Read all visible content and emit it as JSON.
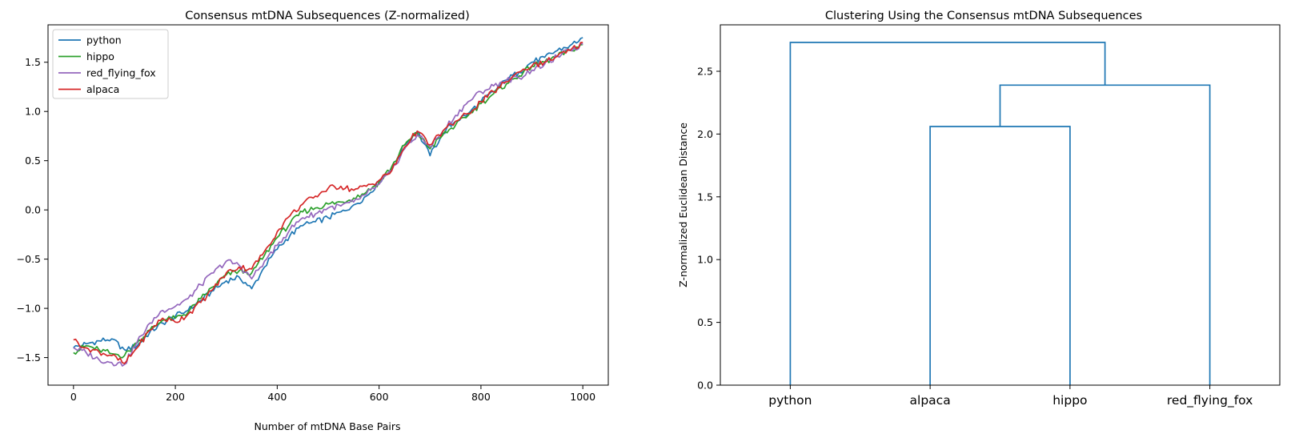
{
  "chart_data": [
    {
      "type": "line",
      "title": "Consensus mtDNA Subsequences (Z-normalized)",
      "xlabel": "Number of mtDNA Base Pairs",
      "ylabel": "",
      "xlim": [
        -50,
        1050
      ],
      "ylim": [
        -1.78,
        1.88
      ],
      "xticks": [
        0,
        200,
        400,
        600,
        800,
        1000
      ],
      "yticks": [
        -1.5,
        -1.0,
        -0.5,
        0.0,
        0.5,
        1.0,
        1.5
      ],
      "xtick_labels": [
        "0",
        "200",
        "400",
        "600",
        "800",
        "1000"
      ],
      "ytick_labels": [
        "−1.5",
        "−1.0",
        "−0.5",
        "0.0",
        "0.5",
        "1.0",
        "1.5"
      ],
      "legend_position": "top-left",
      "series": [
        {
          "name": "python",
          "color": "#1f77b4",
          "x": [
            0,
            25,
            50,
            75,
            100,
            125,
            150,
            175,
            200,
            225,
            250,
            275,
            300,
            325,
            350,
            375,
            400,
            425,
            450,
            475,
            500,
            525,
            550,
            575,
            600,
            625,
            650,
            675,
            700,
            725,
            750,
            775,
            800,
            825,
            850,
            875,
            900,
            925,
            950,
            975,
            1000
          ],
          "y": [
            -1.4,
            -1.36,
            -1.33,
            -1.31,
            -1.42,
            -1.38,
            -1.24,
            -1.15,
            -1.08,
            -1.02,
            -0.92,
            -0.82,
            -0.72,
            -0.68,
            -0.8,
            -0.58,
            -0.4,
            -0.26,
            -0.16,
            -0.12,
            -0.08,
            -0.02,
            0.05,
            0.14,
            0.28,
            0.42,
            0.66,
            0.8,
            0.55,
            0.78,
            0.9,
            0.98,
            1.1,
            1.2,
            1.32,
            1.4,
            1.5,
            1.55,
            1.62,
            1.67,
            1.75
          ]
        },
        {
          "name": "hippo",
          "color": "#2ca02c",
          "x": [
            0,
            25,
            50,
            75,
            100,
            125,
            150,
            175,
            200,
            225,
            250,
            275,
            300,
            325,
            350,
            375,
            400,
            425,
            450,
            475,
            500,
            525,
            550,
            575,
            600,
            625,
            650,
            675,
            700,
            725,
            750,
            775,
            800,
            825,
            850,
            875,
            900,
            925,
            950,
            975,
            1000
          ],
          "y": [
            -1.45,
            -1.38,
            -1.42,
            -1.46,
            -1.48,
            -1.35,
            -1.22,
            -1.12,
            -1.1,
            -1.04,
            -0.9,
            -0.78,
            -0.66,
            -0.62,
            -0.64,
            -0.46,
            -0.28,
            -0.14,
            -0.02,
            0.02,
            0.06,
            0.08,
            0.12,
            0.18,
            0.28,
            0.44,
            0.66,
            0.78,
            0.62,
            0.76,
            0.86,
            0.96,
            1.08,
            1.18,
            1.28,
            1.36,
            1.46,
            1.5,
            1.56,
            1.62,
            1.68
          ]
        },
        {
          "name": "red_flying_fox",
          "color": "#9467bd",
          "x": [
            0,
            25,
            50,
            75,
            100,
            125,
            150,
            175,
            200,
            225,
            250,
            275,
            300,
            325,
            350,
            375,
            400,
            425,
            450,
            475,
            500,
            525,
            550,
            575,
            600,
            625,
            650,
            675,
            700,
            725,
            750,
            775,
            800,
            825,
            850,
            875,
            900,
            925,
            950,
            975,
            1000
          ],
          "y": [
            -1.4,
            -1.45,
            -1.52,
            -1.55,
            -1.57,
            -1.34,
            -1.15,
            -1.02,
            -0.98,
            -0.9,
            -0.76,
            -0.64,
            -0.52,
            -0.56,
            -0.7,
            -0.52,
            -0.36,
            -0.2,
            -0.08,
            -0.04,
            0.02,
            0.04,
            0.08,
            0.16,
            0.26,
            0.4,
            0.62,
            0.76,
            0.64,
            0.8,
            0.96,
            1.1,
            1.2,
            1.26,
            1.32,
            1.34,
            1.42,
            1.48,
            1.56,
            1.62,
            1.68
          ]
        },
        {
          "name": "alpaca",
          "color": "#d62728",
          "x": [
            0,
            25,
            50,
            75,
            100,
            125,
            150,
            175,
            200,
            225,
            250,
            275,
            300,
            325,
            350,
            375,
            400,
            425,
            450,
            475,
            500,
            525,
            550,
            575,
            600,
            625,
            650,
            675,
            700,
            725,
            750,
            775,
            800,
            825,
            850,
            875,
            900,
            925,
            950,
            975,
            1000
          ],
          "y": [
            -1.32,
            -1.4,
            -1.44,
            -1.48,
            -1.56,
            -1.4,
            -1.22,
            -1.1,
            -1.14,
            -1.06,
            -0.94,
            -0.8,
            -0.64,
            -0.58,
            -0.6,
            -0.42,
            -0.22,
            -0.06,
            0.06,
            0.14,
            0.22,
            0.24,
            0.2,
            0.24,
            0.3,
            0.4,
            0.64,
            0.8,
            0.66,
            0.8,
            0.9,
            0.98,
            1.1,
            1.2,
            1.3,
            1.4,
            1.46,
            1.5,
            1.56,
            1.62,
            1.7
          ]
        }
      ]
    },
    {
      "type": "dendrogram",
      "title": "Clustering Using the Consensus mtDNA Subsequences",
      "xlabel": "",
      "ylabel": "Z-normalized Euclidean Distance",
      "ylim": [
        0,
        2.87
      ],
      "yticks": [
        0.0,
        0.5,
        1.0,
        1.5,
        2.0,
        2.5
      ],
      "ytick_labels": [
        "0.0",
        "0.5",
        "1.0",
        "1.5",
        "2.0",
        "2.5"
      ],
      "leaves": [
        "python",
        "alpaca",
        "hippo",
        "red_flying_fox"
      ],
      "color": "#1f77b4",
      "merges": [
        {
          "left": "alpaca",
          "right": "hippo",
          "height": 2.06
        },
        {
          "left": "alpaca+hippo",
          "right": "red_flying_fox",
          "height": 2.39
        },
        {
          "left": "python",
          "right": "alpaca+hippo+red_flying_fox",
          "height": 2.73
        }
      ]
    }
  ]
}
